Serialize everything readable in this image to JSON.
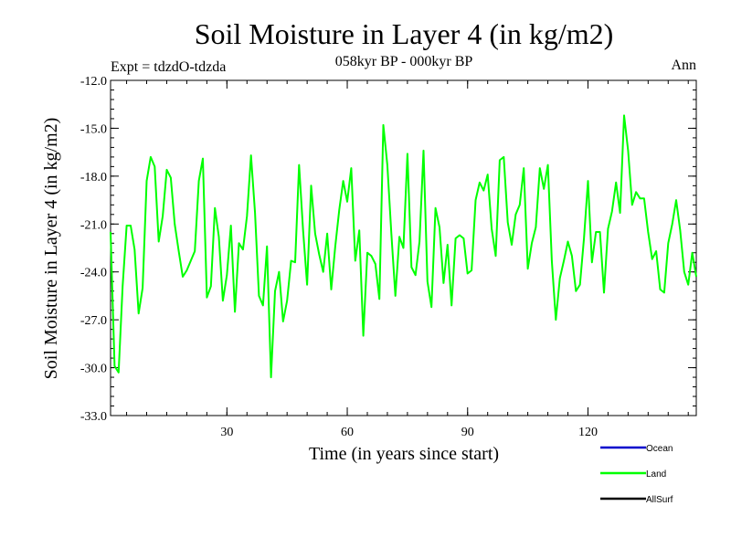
{
  "chart_data": {
    "type": "line",
    "title": "Soil Moisture in Layer 4 (in kg/m2)",
    "subtitle": "058kyr BP - 000kyr BP",
    "experiment_label": "Expt = tdzdO-tdzda",
    "season_label": "Ann",
    "xlabel": "Time (in years since start)",
    "ylabel": "Soil Moisture in Layer 4 (in kg/m2)",
    "xlim": [
      1,
      147
    ],
    "ylim": [
      -33.0,
      -12.0
    ],
    "xticks": [
      30,
      60,
      90,
      120
    ],
    "xtick_labels": [
      "30",
      "60",
      "90",
      "120"
    ],
    "yticks": [
      -12.0,
      -15.0,
      -18.0,
      -21.0,
      -24.0,
      -27.0,
      -30.0,
      -33.0
    ],
    "ytick_labels": [
      "-12.0",
      "-15.0",
      "-18.0",
      "-21.0",
      "-24.0",
      "-27.0",
      "-30.0",
      "-33.0"
    ],
    "grid": false,
    "legend_position": "bottom-right",
    "legend": [
      {
        "name": "Ocean",
        "color": "#0000cc"
      },
      {
        "name": "Land",
        "color": "#00ff00"
      },
      {
        "name": "AllSurf",
        "color": "#000000"
      }
    ],
    "series": [
      {
        "name": "Land",
        "color": "#00ff00",
        "x": [
          1,
          2,
          3,
          4,
          5,
          6,
          7,
          8,
          9,
          10,
          11,
          12,
          13,
          14,
          15,
          16,
          17,
          18,
          19,
          20,
          21,
          22,
          23,
          24,
          25,
          26,
          27,
          28,
          29,
          30,
          31,
          32,
          33,
          34,
          35,
          36,
          37,
          38,
          39,
          40,
          41,
          42,
          43,
          44,
          45,
          46,
          47,
          48,
          49,
          50,
          51,
          52,
          53,
          54,
          55,
          56,
          57,
          58,
          59,
          60,
          61,
          62,
          63,
          64,
          65,
          66,
          67,
          68,
          69,
          70,
          71,
          72,
          73,
          74,
          75,
          76,
          77,
          78,
          79,
          80,
          81,
          82,
          83,
          84,
          85,
          86,
          87,
          88,
          89,
          90,
          91,
          92,
          93,
          94,
          95,
          96,
          97,
          98,
          99,
          100,
          101,
          102,
          103,
          104,
          105,
          106,
          107,
          108,
          109,
          110,
          111,
          112,
          113,
          114,
          115,
          116,
          117,
          118,
          119,
          120,
          121,
          122,
          123,
          124,
          125,
          126,
          127,
          128,
          129,
          130,
          131,
          132,
          133,
          134,
          135,
          136,
          137,
          138,
          139,
          140,
          141,
          142,
          143,
          144,
          145,
          146,
          147
        ],
        "values": [
          -21.5,
          -29.9,
          -30.3,
          -24.9,
          -21.1,
          -21.1,
          -22.6,
          -26.6,
          -25.0,
          -18.3,
          -16.8,
          -17.4,
          -22.1,
          -20.5,
          -17.6,
          -18.1,
          -21.0,
          -22.7,
          -24.3,
          -23.9,
          -23.3,
          -22.7,
          -18.3,
          -16.9,
          -25.6,
          -24.9,
          -20.0,
          -21.8,
          -25.8,
          -24.2,
          -21.1,
          -26.5,
          -22.2,
          -22.6,
          -20.5,
          -16.7,
          -20.3,
          -25.5,
          -26.1,
          -22.4,
          -30.6,
          -25.2,
          -24.0,
          -27.1,
          -25.8,
          -23.3,
          -23.4,
          -17.3,
          -21.4,
          -24.8,
          -18.6,
          -21.6,
          -22.9,
          -24.0,
          -21.6,
          -25.1,
          -22.4,
          -20.1,
          -18.3,
          -19.6,
          -17.5,
          -23.3,
          -21.4,
          -28.0,
          -22.8,
          -23.0,
          -23.5,
          -25.7,
          -14.8,
          -17.3,
          -21.6,
          -25.5,
          -21.8,
          -22.5,
          -16.6,
          -23.7,
          -24.2,
          -22.1,
          -16.4,
          -24.6,
          -26.2,
          -20.0,
          -21.2,
          -24.7,
          -22.3,
          -26.1,
          -21.9,
          -21.7,
          -21.9,
          -24.1,
          -23.9,
          -19.5,
          -18.4,
          -18.9,
          -17.9,
          -21.3,
          -23.0,
          -17.0,
          -16.8,
          -20.9,
          -22.3,
          -20.4,
          -19.8,
          -17.5,
          -23.8,
          -22.2,
          -21.2,
          -17.5,
          -18.8,
          -17.3,
          -23.3,
          -27.0,
          -24.4,
          -23.3,
          -22.1,
          -23.0,
          -25.2,
          -24.8,
          -21.9,
          -18.3,
          -23.4,
          -21.5,
          -21.5,
          -25.3,
          -21.3,
          -20.2,
          -18.4,
          -20.3,
          -14.2,
          -16.4,
          -19.8,
          -19.0,
          -19.4,
          -19.4,
          -21.5,
          -23.2,
          -22.7,
          -25.1,
          -25.3,
          -22.2,
          -21.0,
          -19.5,
          -21.4,
          -24.0,
          -24.8,
          -22.8,
          -24.3
        ]
      }
    ]
  }
}
